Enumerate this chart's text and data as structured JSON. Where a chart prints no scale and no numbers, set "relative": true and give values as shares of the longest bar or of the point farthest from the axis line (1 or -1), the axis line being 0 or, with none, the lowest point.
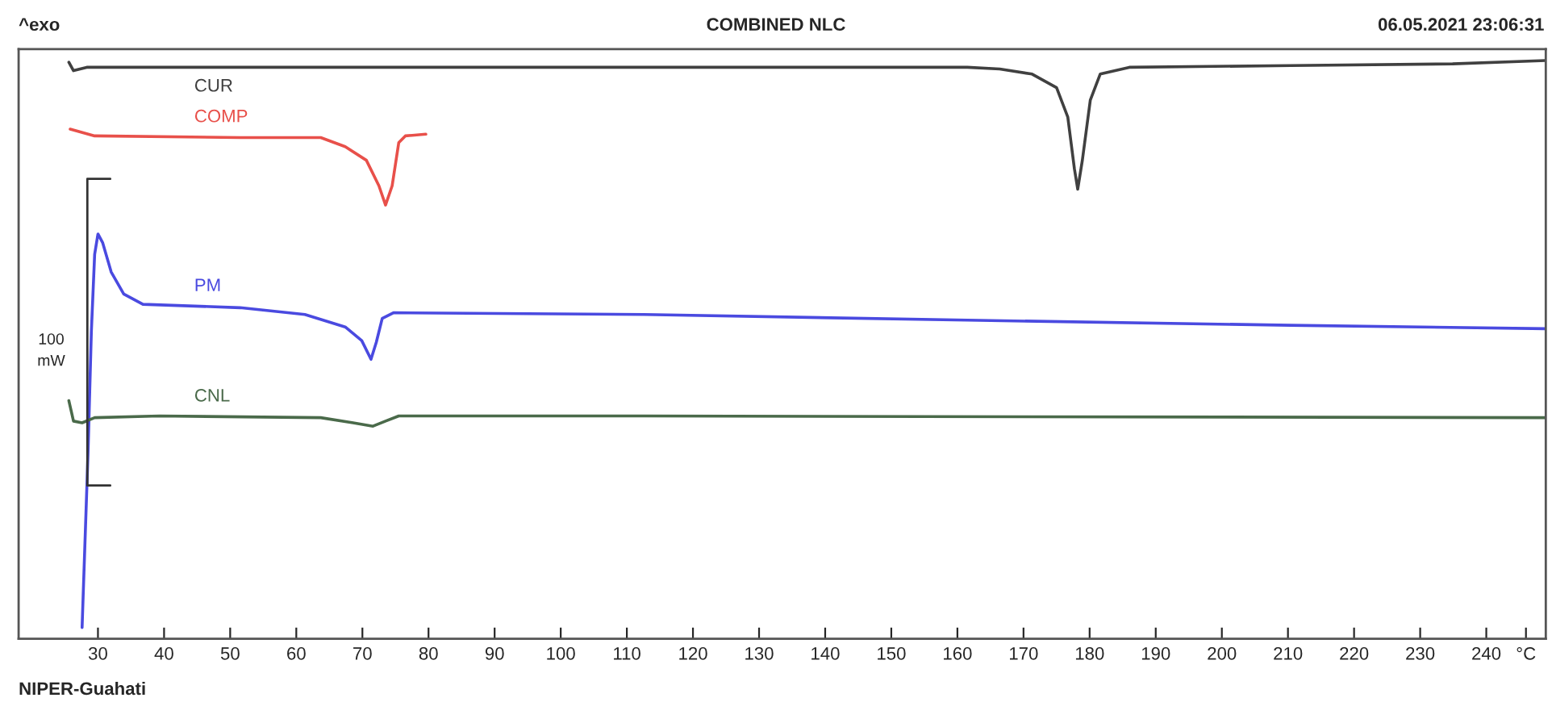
{
  "chart_data": {
    "type": "line",
    "title": "COMBINED NLC",
    "relative": true,
    "annotations": [
      "^exo",
      "06.05.2021 23:06:31",
      "NIPER-Guahati",
      "100\nmW"
    ],
    "xlim": [
      18,
      249
    ],
    "xticks": [
      30,
      40,
      50,
      60,
      70,
      80,
      90,
      100,
      110,
      120,
      130,
      140,
      150,
      160,
      170,
      180,
      190,
      200,
      210,
      220,
      230,
      240,
      {
        "value": 246,
        "label": "°C"
      }
    ],
    "grid": false,
    "legend": false,
    "marker": "none",
    "line_style": "solid",
    "series": [
      {
        "name": "CUR",
        "color": "#404040",
        "x": [
          25.6,
          26.3,
          28.3,
          63.7,
          112.6,
          161.5,
          166.4,
          171.3,
          175,
          176.7,
          177.7,
          178.2,
          178.9,
          180.1,
          181.6,
          186,
          210.4,
          234.9,
          249
        ],
        "values": [
          0.997,
          0.982,
          0.988,
          0.988,
          0.988,
          0.988,
          0.985,
          0.976,
          0.952,
          0.9,
          0.809,
          0.773,
          0.824,
          0.93,
          0.976,
          0.988,
          0.991,
          0.994,
          1.0
        ]
      },
      {
        "name": "COMP",
        "color": "#e8504a",
        "x": [
          25.8,
          29.5,
          51.5,
          63.7,
          67.4,
          70.6,
          72.5,
          73.5,
          74.5,
          75.5,
          76.5,
          79.6
        ],
        "values": [
          0.879,
          0.867,
          0.864,
          0.864,
          0.848,
          0.824,
          0.779,
          0.745,
          0.779,
          0.855,
          0.867,
          0.87
        ]
      },
      {
        "name": "PM",
        "color": "#4a4ae0",
        "x": [
          27.6,
          28.5,
          29.0,
          29.5,
          30,
          30.7,
          32,
          33.9,
          36.8,
          51.5,
          61.3,
          67.4,
          69.9,
          71.3,
          72.1,
          73,
          74.7,
          112.6,
          161.5,
          210.4,
          249
        ],
        "values": [
          0,
          0.309,
          0.521,
          0.658,
          0.694,
          0.679,
          0.627,
          0.588,
          0.57,
          0.564,
          0.552,
          0.53,
          0.506,
          0.473,
          0.503,
          0.545,
          0.555,
          0.552,
          0.542,
          0.533,
          0.527
        ]
      },
      {
        "name": "CNL",
        "color": "#4a6a4a",
        "x": [
          25.6,
          26.3,
          27.6,
          29.5,
          39.3,
          63.7,
          68.6,
          71.6,
          73.5,
          75.5,
          112.6,
          249
        ],
        "values": [
          0.4,
          0.364,
          0.361,
          0.37,
          0.373,
          0.37,
          0.361,
          0.355,
          0.364,
          0.373,
          0.373,
          0.37
        ]
      }
    ]
  }
}
